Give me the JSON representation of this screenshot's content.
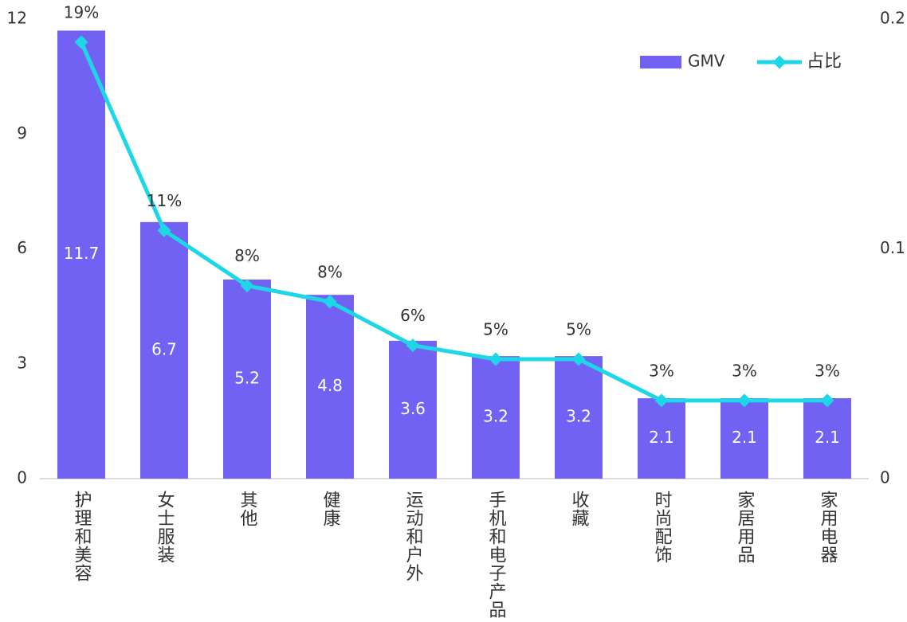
{
  "chart_data": {
    "type": "bar-line",
    "categories": [
      "护理和美容",
      "女士服装",
      "其他",
      "健康",
      "运动和户外",
      "手机和电子产品",
      "收藏",
      "时尚配饰",
      "家居用品",
      "家用电器"
    ],
    "series": [
      {
        "name": "GMV",
        "type": "bar",
        "color": "#7262f4",
        "values": [
          11.7,
          6.7,
          5.2,
          4.8,
          3.6,
          3.2,
          3.2,
          2.1,
          2.1,
          2.1
        ]
      },
      {
        "name": "占比",
        "type": "line",
        "axis": "y2",
        "color": "#1dd6e6",
        "values": [
          0.19,
          0.108,
          0.084,
          0.077,
          0.058,
          0.052,
          0.052,
          0.034,
          0.034,
          0.034
        ],
        "value_labels": [
          "19%",
          "11%",
          "8%",
          "8%",
          "6%",
          "5%",
          "5%",
          "3%",
          "3%",
          "3%"
        ]
      }
    ],
    "ylim": [
      0,
      12
    ],
    "yticks": [
      0,
      3,
      6,
      9,
      12
    ],
    "y2lim": [
      0,
      0.2
    ],
    "y2ticks": [
      0,
      0.1,
      0.2
    ],
    "legend": "top-right",
    "grid": false
  }
}
